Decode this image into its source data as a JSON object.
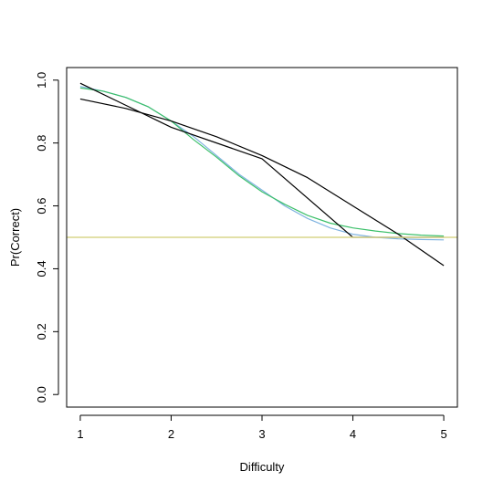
{
  "chart_data": {
    "type": "line",
    "xlabel": "Difficulty",
    "ylabel": "Pr(Correct)",
    "xlim": [
      0.85,
      5.15
    ],
    "ylim": [
      -0.04,
      1.04
    ],
    "x_ticks": [
      "1",
      "2",
      "3",
      "4",
      "5"
    ],
    "y_ticks": [
      "0.0",
      "0.2",
      "0.4",
      "0.6",
      "0.8",
      "1.0"
    ],
    "grid": false,
    "legend": "none",
    "hline": {
      "y": 0.5,
      "color": "#d9d58c"
    },
    "series": [
      {
        "color": "#7fb3e0",
        "x": [
          1,
          1.25,
          1.5,
          1.75,
          2,
          2.25,
          2.5,
          2.75,
          3,
          3.25,
          3.5,
          3.75,
          4,
          4.25,
          4.5,
          4.75,
          5
        ],
        "y": [
          0.98,
          0.965,
          0.945,
          0.915,
          0.87,
          0.82,
          0.76,
          0.7,
          0.65,
          0.6,
          0.56,
          0.53,
          0.51,
          0.5,
          0.495,
          0.493,
          0.492
        ]
      },
      {
        "color": "#3cc06a",
        "x": [
          1,
          1.25,
          1.5,
          1.75,
          2,
          2.25,
          2.5,
          2.75,
          3,
          3.25,
          3.5,
          3.75,
          4,
          4.25,
          4.5,
          4.75,
          5
        ],
        "y": [
          0.975,
          0.965,
          0.945,
          0.915,
          0.87,
          0.81,
          0.755,
          0.695,
          0.645,
          0.605,
          0.57,
          0.545,
          0.53,
          0.52,
          0.512,
          0.507,
          0.504
        ]
      },
      {
        "color": "#000000",
        "x": [
          1,
          2,
          3,
          4,
          5
        ],
        "y": [
          0.99,
          0.85,
          0.75,
          0.5,
          0.5
        ]
      },
      {
        "color": "#000000",
        "x": [
          1,
          1.5,
          2,
          2.5,
          3,
          3.5,
          4,
          4.5,
          5
        ],
        "y": [
          0.94,
          0.91,
          0.87,
          0.82,
          0.76,
          0.69,
          0.6,
          0.51,
          0.41
        ]
      }
    ]
  }
}
